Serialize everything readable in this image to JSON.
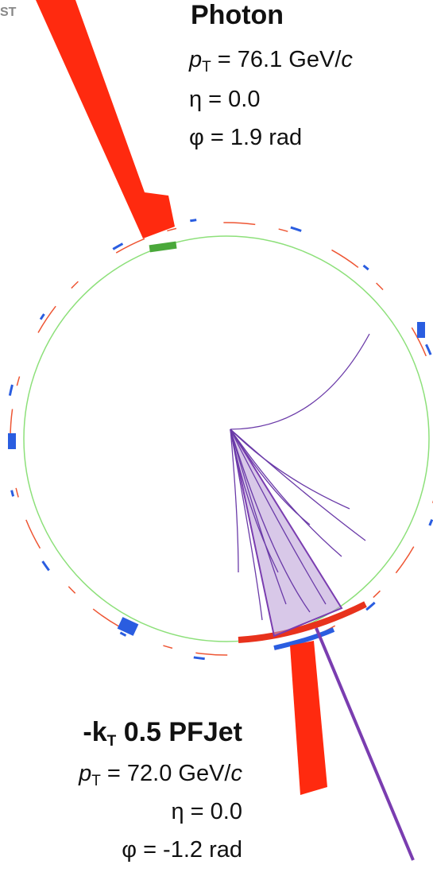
{
  "logo": "ST",
  "photon": {
    "title": "Photon",
    "pt": {
      "symbol": "p",
      "sub": "T",
      "value": " = 76.1 GeV/",
      "unit": "c"
    },
    "eta": "η = 0.0",
    "phi": "φ = 1.9 rad"
  },
  "jet": {
    "title": {
      "prefix": "-k",
      "sub": "T",
      "rest": " 0.5 PFJet"
    },
    "pt": {
      "symbol": "p",
      "sub": "T",
      "value": " = 72.0 GeV/",
      "unit": "c"
    },
    "eta": "η = 0.0",
    "phi": "φ = -1.2 rad"
  }
}
